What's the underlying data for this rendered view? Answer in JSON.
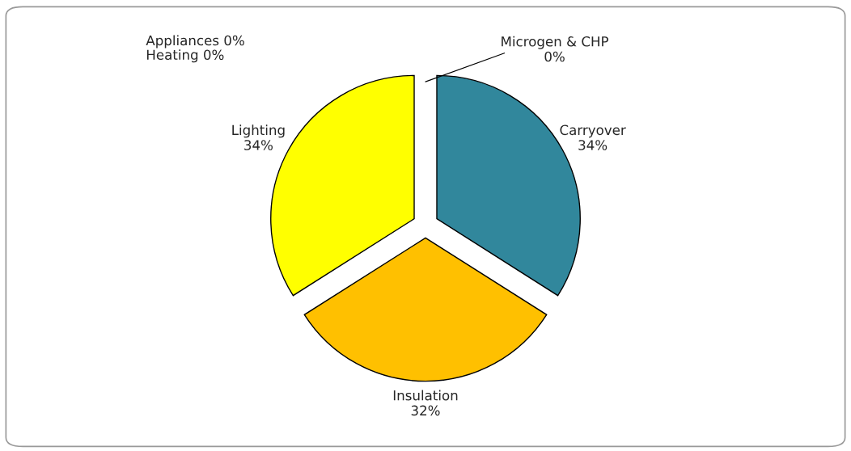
{
  "chart_data": {
    "type": "pie",
    "categories": [
      "Carryover",
      "Insulation",
      "Lighting",
      "Appliances",
      "Heating",
      "Microgen & CHP"
    ],
    "values": [
      34,
      32,
      34,
      0,
      0,
      0
    ],
    "value_labels": [
      "34%",
      "32%",
      "34%",
      "0%",
      "0%",
      "0%"
    ],
    "colors": [
      "#31879c",
      "#ffc000",
      "#ffff00",
      "#7030a0",
      "#c00000",
      "#1f1f5f"
    ],
    "legend": false
  }
}
